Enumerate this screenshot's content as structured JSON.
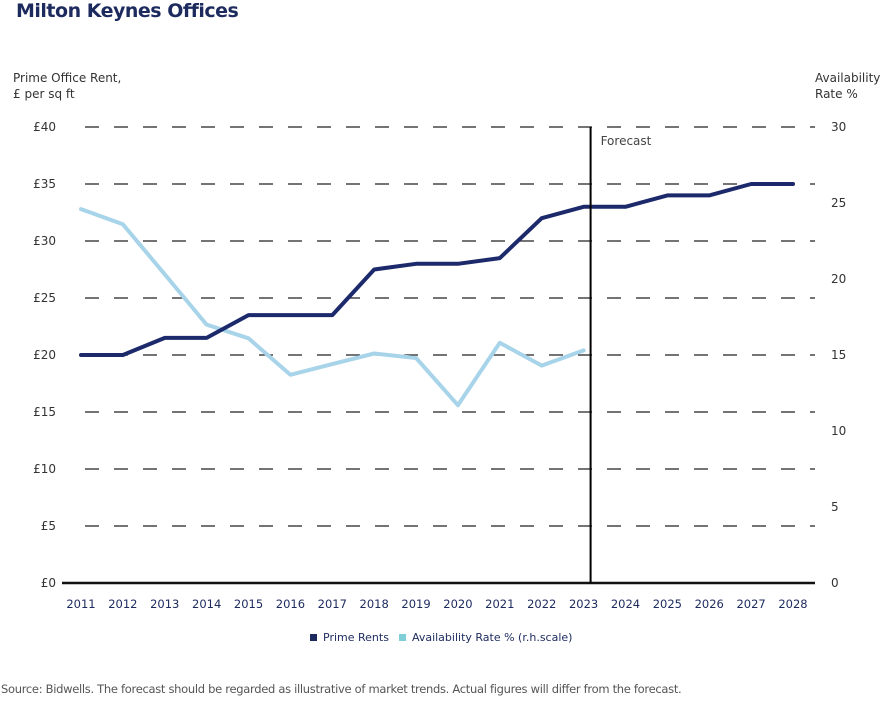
{
  "title": "Milton Keynes Offices",
  "source_note": "Source: Bidwells.  The forecast should be regarded as illustrative of market trends.  Actual figures will differ from the forecast.",
  "chart_data": {
    "type": "line",
    "title": "Milton Keynes Offices",
    "x": [
      "2011",
      "2012",
      "2013",
      "2014",
      "2015",
      "2016",
      "2017",
      "2018",
      "2019",
      "2020",
      "2021",
      "2022",
      "2023",
      "2024",
      "2025",
      "2026",
      "2027",
      "2028"
    ],
    "ylabel_left": "Prime Office Rent,\n£ per sq ft",
    "ylabel_right": "Availability\nRate %",
    "ylim_left": [
      0,
      40
    ],
    "ylim_right": [
      0,
      30
    ],
    "yticks_left": [
      "£0",
      "£5",
      "£10",
      "£15",
      "£20",
      "£25",
      "£30",
      "£35",
      "£40"
    ],
    "yticks_right": [
      "0",
      "5",
      "10",
      "15",
      "20",
      "25",
      "30"
    ],
    "grid": "dashed horizontal",
    "forecast_start": "2023",
    "forecast_label": "Forecast",
    "series": [
      {
        "name": "Prime Rents",
        "axis": "left",
        "color": "#1c2a6b",
        "values": [
          20,
          20,
          21.5,
          21.5,
          23.5,
          23.5,
          23.5,
          27.5,
          28,
          28,
          28.5,
          32,
          33,
          33,
          34,
          34,
          35,
          35
        ]
      },
      {
        "name": "Availability Rate % (r.h.scale)",
        "axis": "right",
        "color": "#a8d4ea",
        "values": [
          24.6,
          23.6,
          20.3,
          17.0,
          16.1,
          13.7,
          14.4,
          15.1,
          14.8,
          11.7,
          15.8,
          14.3,
          15.3,
          null,
          null,
          null,
          null,
          null
        ]
      }
    ],
    "legend": "bottom-center"
  },
  "legend": {
    "items": [
      {
        "label": "Prime Rents",
        "color": "#1c2a5e"
      },
      {
        "label": "Availability Rate % (r.h.scale)",
        "color": "#7fcfd6"
      }
    ]
  }
}
